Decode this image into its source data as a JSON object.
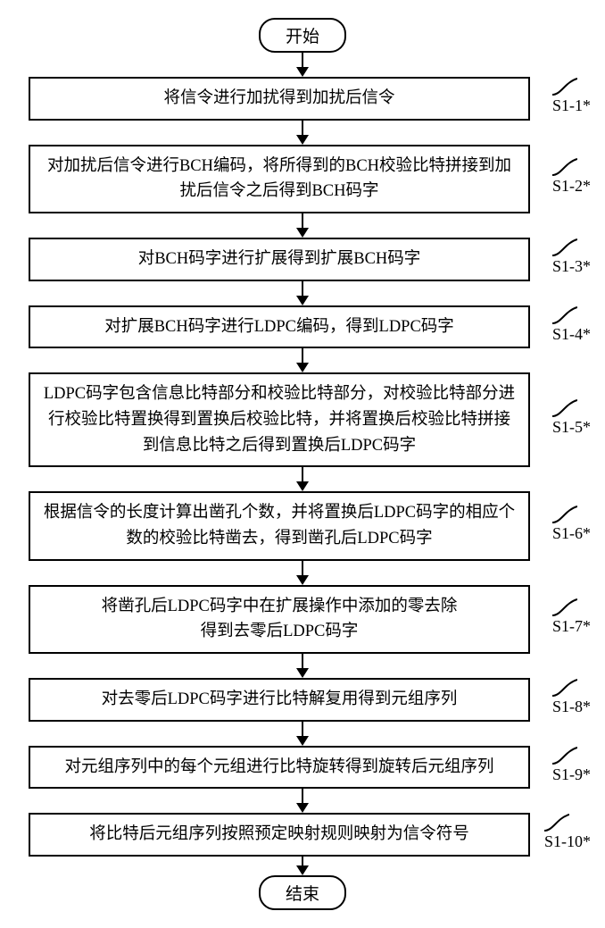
{
  "terminal_start": "开始",
  "terminal_end": "结束",
  "steps": [
    {
      "text": "将信令进行加扰得到加扰后信令",
      "label": "S1-1*"
    },
    {
      "text": "对加扰后信令进行BCH编码，将所得到的BCH校验比特拼接到加扰后信令之后得到BCH码字",
      "label": "S1-2*"
    },
    {
      "text": "对BCH码字进行扩展得到扩展BCH码字",
      "label": "S1-3*"
    },
    {
      "text": "对扩展BCH码字进行LDPC编码，得到LDPC码字",
      "label": "S1-4*"
    },
    {
      "text": "LDPC码字包含信息比特部分和校验比特部分，对校验比特部分进行校验比特置换得到置换后校验比特，并将置换后校验比特拼接到信息比特之后得到置换后LDPC码字",
      "label": "S1-5*"
    },
    {
      "text": "根据信令的长度计算出凿孔个数，并将置换后LDPC码字的相应个数的校验比特凿去，得到凿孔后LDPC码字",
      "label": "S1-6*"
    },
    {
      "text": "将凿孔后LDPC码字中在扩展操作中添加的零去除\n得到去零后LDPC码字",
      "label": "S1-7*"
    },
    {
      "text": "对去零后LDPC码字进行比特解复用得到元组序列",
      "label": "S1-8*"
    },
    {
      "text": "对元组序列中的每个元组进行比特旋转得到旋转后元组序列",
      "label": "S1-9*"
    },
    {
      "text": "将比特后元组序列按照预定映射规则映射为信令符号",
      "label": "S1-10*"
    }
  ],
  "arrow_heights": {
    "first": 16,
    "between": 16,
    "last": 10
  },
  "colors": {
    "line": "#000000",
    "bg": "#ffffff"
  }
}
